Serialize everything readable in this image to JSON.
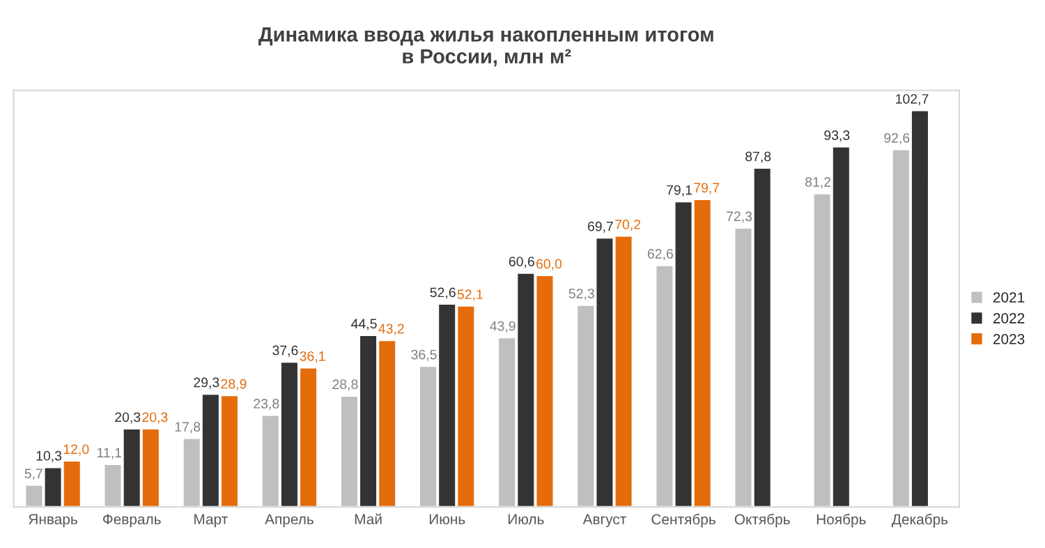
{
  "chart_data": {
    "type": "bar",
    "title": "Динамика ввода жилья накопленным итогом\nв России, млн м²",
    "categories": [
      "Январь",
      "Февраль",
      "Март",
      "Апрель",
      "Май",
      "Июнь",
      "Июль",
      "Август",
      "Сентябрь",
      "Октябрь",
      "Ноябрь",
      "Декабрь"
    ],
    "series": [
      {
        "name": "2021",
        "color": "#bfbfbf",
        "values": [
          5.7,
          11.1,
          17.8,
          23.8,
          28.8,
          36.5,
          43.9,
          52.3,
          62.6,
          72.3,
          81.2,
          92.6
        ],
        "value_labels": [
          "5,7",
          "11,1",
          "17,8",
          "23,8",
          "28,8",
          "36,5",
          "43,9",
          "52,3",
          "62,6",
          "72,3",
          "81,2",
          "92,6"
        ]
      },
      {
        "name": "2022",
        "color": "#333333",
        "values": [
          10.3,
          20.3,
          29.3,
          37.6,
          44.5,
          52.6,
          60.6,
          69.7,
          79.1,
          87.8,
          93.3,
          102.7
        ],
        "value_labels": [
          "10,3",
          "20,3",
          "29,3",
          "37,6",
          "44,5",
          "52,6",
          "60,6",
          "69,7",
          "79,1",
          "87,8",
          "93,3",
          "102,7"
        ]
      },
      {
        "name": "2023",
        "color": "#e46c0a",
        "values": [
          12.0,
          20.3,
          28.9,
          36.1,
          43.2,
          52.1,
          60.0,
          70.2,
          79.7,
          null,
          null,
          null
        ],
        "value_labels": [
          "12,0",
          "20,3",
          "28,9",
          "36,1",
          "43,2",
          "52,1",
          "60,0",
          "70,2",
          "79,7",
          null,
          null,
          null
        ]
      }
    ],
    "legend": "right",
    "tick_labels": "x"
  }
}
